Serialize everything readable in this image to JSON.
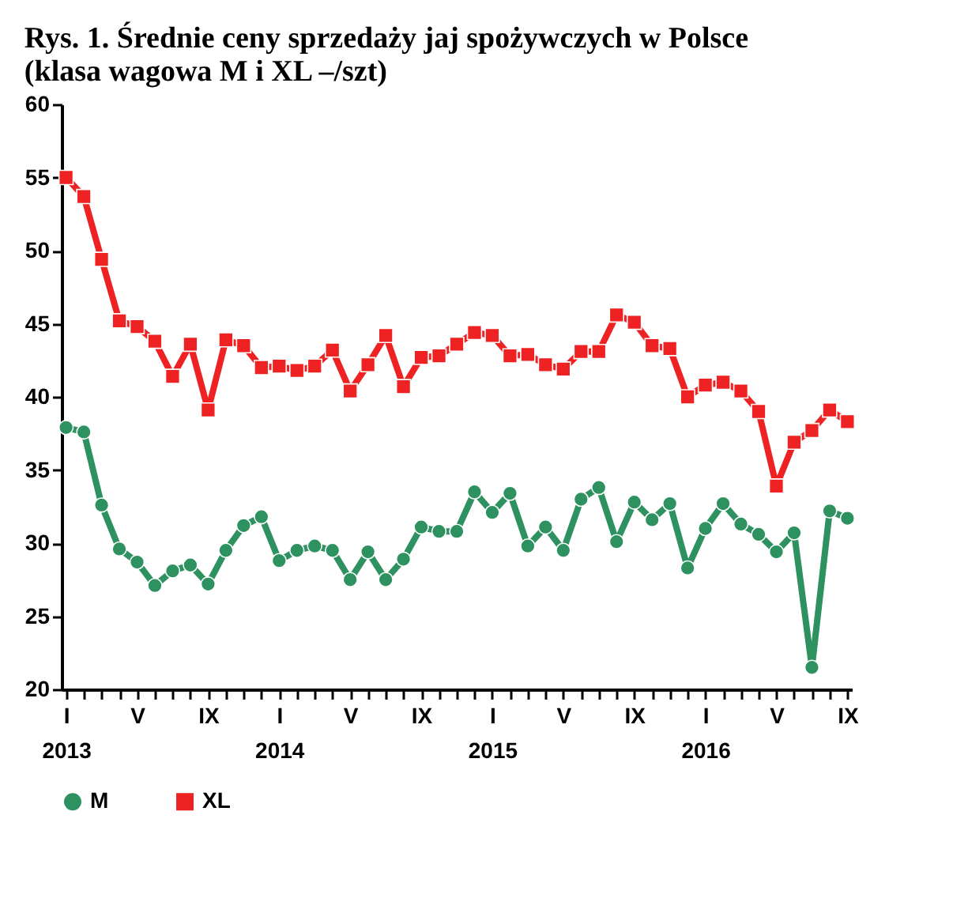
{
  "chart_data": {
    "type": "line",
    "title": "Rys. 1. Średnie ceny sprzedaży jaj spożywczych w Polsce\n(klasa wagowa M i XL –/szt)",
    "categories": [
      "I\n2013",
      null,
      null,
      null,
      "V",
      null,
      null,
      null,
      "IX",
      null,
      null,
      null,
      "I\n2014",
      null,
      null,
      null,
      "V",
      null,
      null,
      null,
      "IX",
      null,
      null,
      null,
      "I\n2015",
      null,
      null,
      null,
      "V",
      null,
      null,
      null,
      "IX",
      null,
      null,
      null,
      "I\n2016",
      null,
      null,
      null,
      "V",
      null,
      null,
      null,
      "IX"
    ],
    "series": [
      {
        "name": "M",
        "color": "#2e9160",
        "marker": "circle",
        "values": [
          37.9,
          37.6,
          32.6,
          29.6,
          28.7,
          27.1,
          28.1,
          28.5,
          27.2,
          29.5,
          31.2,
          31.8,
          28.8,
          29.5,
          29.8,
          29.5,
          27.5,
          29.4,
          27.5,
          28.9,
          31.1,
          30.8,
          30.8,
          33.5,
          32.1,
          33.4,
          29.8,
          31.1,
          29.5,
          33.0,
          33.8,
          30.1,
          32.8,
          31.6,
          32.7,
          28.3,
          31.0,
          32.7,
          31.3,
          30.6,
          29.4,
          30.7,
          21.5,
          32.2,
          31.7
        ]
      },
      {
        "name": "XL",
        "color": "#ee2222",
        "marker": "square",
        "values": [
          55.0,
          53.7,
          49.4,
          45.2,
          44.8,
          43.8,
          41.4,
          43.6,
          39.1,
          43.9,
          43.5,
          42.0,
          42.1,
          41.8,
          42.1,
          43.2,
          40.4,
          42.2,
          44.2,
          40.7,
          42.7,
          42.8,
          43.6,
          44.4,
          44.2,
          42.8,
          42.9,
          42.2,
          41.9,
          43.1,
          43.1,
          45.6,
          45.1,
          43.5,
          43.3,
          40.0,
          40.8,
          41.0,
          40.4,
          39.0,
          33.9,
          36.9,
          37.7,
          39.1,
          38.3
        ]
      }
    ],
    "ylim": [
      20,
      60
    ],
    "yticks": [
      20,
      25,
      30,
      35,
      40,
      45,
      50,
      55,
      60
    ],
    "grid": false,
    "legend": "bottom",
    "line_style": "solid"
  }
}
